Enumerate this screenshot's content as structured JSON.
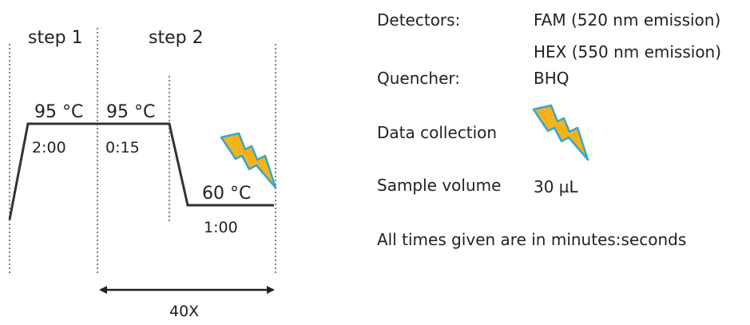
{
  "protocol": {
    "step1_label": "step 1",
    "step2_label": "step 2",
    "step1_temp": "95 °C",
    "step1_time": "2:00",
    "step2_denature_temp": "95 °C",
    "step2_denature_time": "0:15",
    "step2_anneal_temp": "60 °C",
    "step2_anneal_time": "1:00",
    "cycles_label": "40X",
    "icon": "lightning-bolt-icon"
  },
  "info": {
    "detectors_label": "Detectors:",
    "detector_1": "FAM (520 nm emission)",
    "detector_2": "HEX (550 nm emission)",
    "quencher_label": "Quencher:",
    "quencher_value": "BHQ",
    "data_collection_label": "Data collection",
    "data_collection_icon": "lightning-bolt-icon",
    "sample_volume_label": "Sample volume",
    "sample_volume_value": "30 µL",
    "note": "All times given are in minutes:seconds"
  },
  "colors": {
    "bolt_fill": "#f5b21b",
    "bolt_outline": "#35a7d0",
    "line": "#333333"
  }
}
